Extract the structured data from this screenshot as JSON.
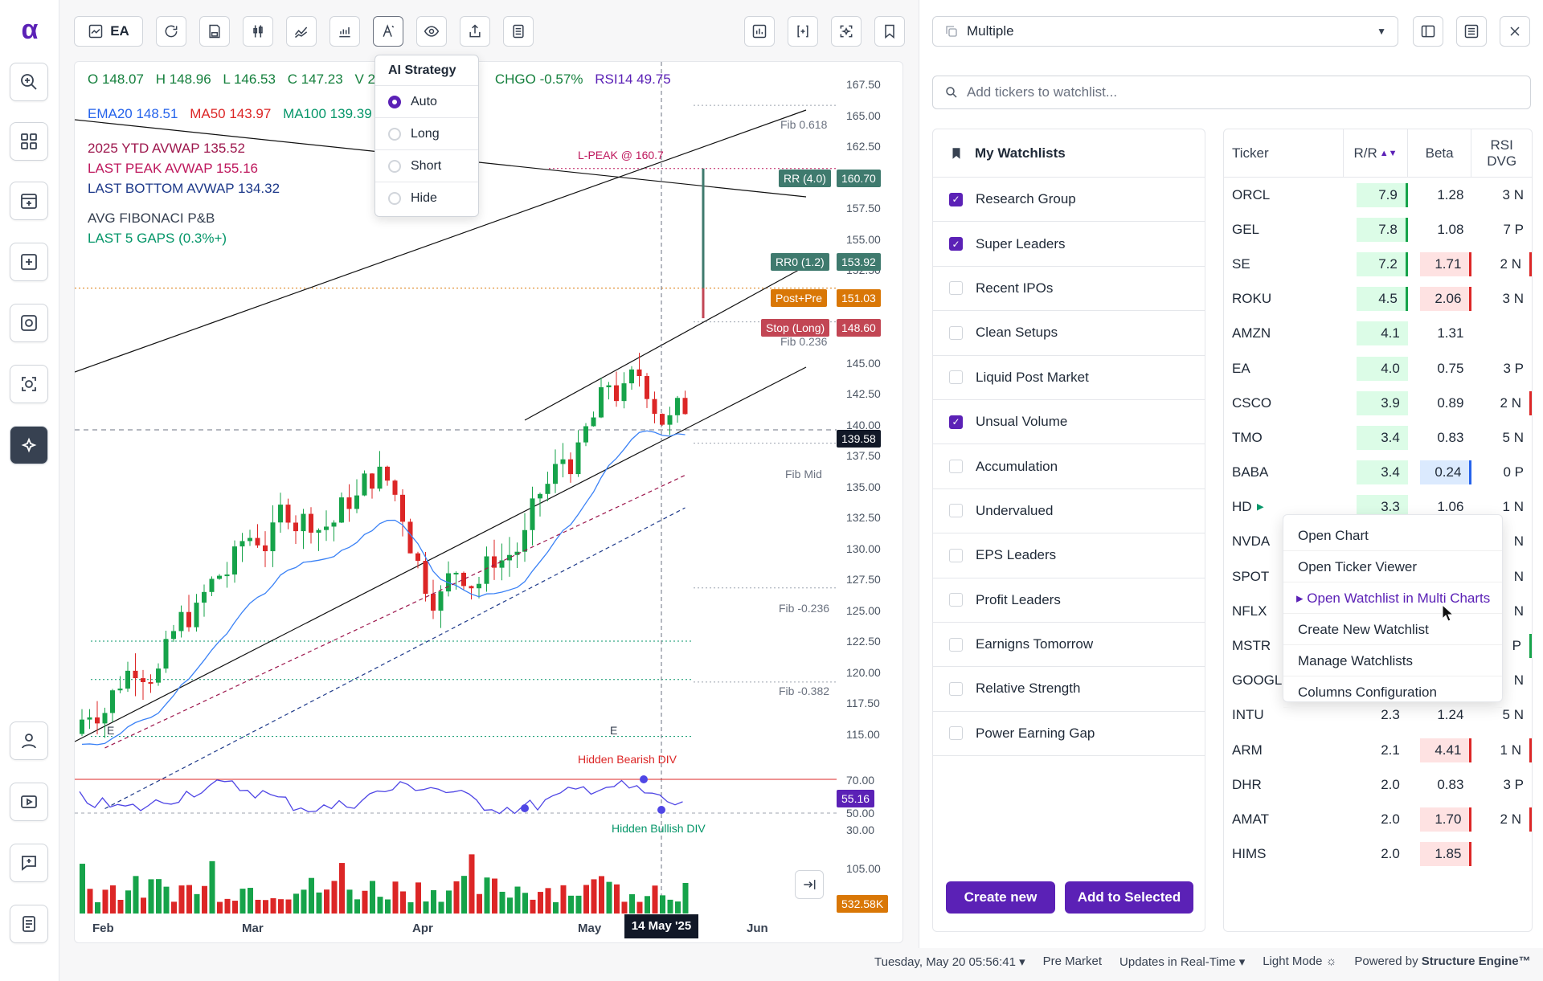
{
  "app": {
    "logo": "α"
  },
  "toolbar": {
    "ticker": "EA"
  },
  "chart": {
    "ohlc": {
      "o": "O 148.07",
      "h": "H 148.96",
      "l": "L 146.53",
      "c": "C 147.23",
      "v": "V 2.7",
      "chg": "CHGO -0.57%",
      "rsi": "RSI14 49.75"
    },
    "ma": {
      "ema20": "EMA20 148.51",
      "ma50": "MA50 143.97",
      "ma100": "MA100 139.39"
    },
    "legend": [
      {
        "text": "2025 YTD AVWAP 135.52",
        "color": "#9d174d"
      },
      {
        "text": "LAST PEAK AVWAP 155.16",
        "color": "#be185d"
      },
      {
        "text": "LAST BOTTOM AVWAP 134.32",
        "color": "#1e3a8a"
      },
      {
        "text": "AVG FIBONACI P&B",
        "color": "#374151"
      },
      {
        "text": "LAST 5 GAPS (0.3%+)",
        "color": "#059669"
      }
    ],
    "price_ticks": [
      "167.50",
      "165.00",
      "162.50",
      "160.00",
      "157.50",
      "155.00",
      "152.50",
      "150.00",
      "147.50",
      "145.00",
      "142.50",
      "140.00",
      "137.50",
      "135.00",
      "132.50",
      "130.00",
      "127.50",
      "125.00",
      "122.50",
      "120.00",
      "117.50",
      "115.00"
    ],
    "rsi_ticks": [
      "70.00",
      "50.00",
      "30.00"
    ],
    "volume_tick": "105.00",
    "tags": {
      "rr": "RR (4.0)",
      "rr_price": "160.70",
      "rr0": "RR0 (1.2)",
      "rr0_price": "153.92",
      "postpre": "Post+Pre",
      "postpre_price": "151.03",
      "stop": "Stop (Long)",
      "stop_price": "148.60",
      "last": "139.58",
      "rsi": "55.16",
      "vol": "532.58K"
    },
    "fib": {
      "f618": "Fib 0.618",
      "f236": "Fib 0.236",
      "mid": "Fib Mid",
      "fm236": "Fib -0.236",
      "fm382": "Fib -0.382"
    },
    "annotations": {
      "lpeak": "L-PEAK @ 160.7",
      "hidden_bear": "Hidden Bearish DIV",
      "hidden_bull": "Hidden Bullish DIV",
      "e1": "E",
      "e2": "E"
    },
    "months": [
      "Feb",
      "Mar",
      "Apr",
      "May",
      "Jun"
    ],
    "crosshair_date": "14 May '25"
  },
  "ai_menu": {
    "title": "AI Strategy",
    "options": [
      "Auto",
      "Long",
      "Short",
      "Hide"
    ],
    "selected": "Auto"
  },
  "right": {
    "selector": "Multiple",
    "search_placeholder": "Add tickers to watchlist...",
    "watchlists_title": "My Watchlists",
    "watchlists": [
      {
        "name": "Research Group",
        "checked": true
      },
      {
        "name": "Super Leaders",
        "checked": true
      },
      {
        "name": "Recent IPOs",
        "checked": false
      },
      {
        "name": "Clean Setups",
        "checked": false
      },
      {
        "name": "Liquid Post Market",
        "checked": false
      },
      {
        "name": "Unsual Volume",
        "checked": true
      },
      {
        "name": "Accumulation",
        "checked": false
      },
      {
        "name": "Undervalued",
        "checked": false
      },
      {
        "name": "EPS Leaders",
        "checked": false
      },
      {
        "name": "Profit Leaders",
        "checked": false
      },
      {
        "name": "Earnigns Tomorrow",
        "checked": false
      },
      {
        "name": "Relative Strength",
        "checked": false
      },
      {
        "name": "Power Earning Gap",
        "checked": false
      }
    ],
    "create_new": "Create new",
    "add_selected": "Add to Selected",
    "columns": {
      "ticker": "Ticker",
      "rr": "R/R",
      "beta": "Beta",
      "rsi1": "RSI",
      "rsi2": "DVG"
    },
    "rows": [
      {
        "t": "ORCL",
        "rr": "7.9",
        "beta": "1.28",
        "rsi": "3 N",
        "rrbg": "#dcfce7",
        "rrbar": "#16a34a",
        "bbg": "",
        "bbar": "",
        "sbar": ""
      },
      {
        "t": "GEL",
        "rr": "7.8",
        "beta": "1.08",
        "rsi": "7 P",
        "rrbg": "#dcfce7",
        "rrbar": "#16a34a",
        "bbg": "",
        "bbar": "",
        "sbar": ""
      },
      {
        "t": "SE",
        "rr": "7.2",
        "beta": "1.71",
        "rsi": "2 N",
        "rrbg": "#dcfce7",
        "rrbar": "#16a34a",
        "bbg": "#fee2e2",
        "bbar": "#dc2626",
        "sbar": "#dc2626"
      },
      {
        "t": "ROKU",
        "rr": "4.5",
        "beta": "2.06",
        "rsi": "3 N",
        "rrbg": "#dcfce7",
        "rrbar": "#16a34a",
        "bbg": "#fee2e2",
        "bbar": "#dc2626",
        "sbar": ""
      },
      {
        "t": "AMZN",
        "rr": "4.1",
        "beta": "1.31",
        "rsi": "",
        "rrbg": "#dcfce7",
        "rrbar": "",
        "bbg": "",
        "bbar": "",
        "sbar": ""
      },
      {
        "t": "EA",
        "rr": "4.0",
        "beta": "0.75",
        "rsi": "3 P",
        "rrbg": "#dcfce7",
        "rrbar": "",
        "bbg": "",
        "bbar": "",
        "sbar": ""
      },
      {
        "t": "CSCO",
        "rr": "3.9",
        "beta": "0.89",
        "rsi": "2 N",
        "rrbg": "#dcfce7",
        "rrbar": "",
        "bbg": "",
        "bbar": "",
        "sbar": "#dc2626"
      },
      {
        "t": "TMO",
        "rr": "3.4",
        "beta": "0.83",
        "rsi": "5 N",
        "rrbg": "#dcfce7",
        "rrbar": "",
        "bbg": "",
        "bbar": "",
        "sbar": ""
      },
      {
        "t": "BABA",
        "rr": "3.4",
        "beta": "0.24",
        "rsi": "0 P",
        "rrbg": "#dcfce7",
        "rrbar": "",
        "bbg": "#dbeafe",
        "bbar": "#2563eb",
        "sbar": ""
      },
      {
        "t": "HD",
        "rr": "3.3",
        "beta": "1.06",
        "rsi": "1 N",
        "rrbg": "#dcfce7",
        "rrbar": "",
        "bbg": "",
        "bbar": "",
        "sbar": "",
        "flag": true
      },
      {
        "t": "NVDA",
        "rr": "",
        "beta": "",
        "rsi": "N",
        "rrbg": "",
        "rrbar": "",
        "bbg": "",
        "bbar": "",
        "sbar": ""
      },
      {
        "t": "SPOT",
        "rr": "",
        "beta": "",
        "rsi": "N",
        "rrbg": "",
        "rrbar": "",
        "bbg": "",
        "bbar": "",
        "sbar": ""
      },
      {
        "t": "NFLX",
        "rr": "",
        "beta": "",
        "rsi": "N",
        "rrbg": "",
        "rrbar": "",
        "bbg": "",
        "bbar": "",
        "sbar": ""
      },
      {
        "t": "MSTR",
        "rr": "",
        "beta": "",
        "rsi": "P",
        "rrbg": "",
        "rrbar": "",
        "bbg": "",
        "bbar": "",
        "sbar": "#16a34a"
      },
      {
        "t": "GOOGL",
        "rr": "",
        "beta": "",
        "rsi": "N",
        "rrbg": "",
        "rrbar": "",
        "bbg": "",
        "bbar": "",
        "sbar": ""
      },
      {
        "t": "INTU",
        "rr": "2.3",
        "beta": "1.24",
        "rsi": "5 N",
        "rrbg": "",
        "rrbar": "",
        "bbg": "",
        "bbar": "",
        "sbar": ""
      },
      {
        "t": "ARM",
        "rr": "2.1",
        "beta": "4.41",
        "rsi": "1 N",
        "rrbg": "",
        "rrbar": "",
        "bbg": "#fee2e2",
        "bbar": "#dc2626",
        "sbar": "#dc2626"
      },
      {
        "t": "DHR",
        "rr": "2.0",
        "beta": "0.83",
        "rsi": "3 P",
        "rrbg": "",
        "rrbar": "",
        "bbg": "",
        "bbar": "",
        "sbar": ""
      },
      {
        "t": "AMAT",
        "rr": "2.0",
        "beta": "1.70",
        "rsi": "2 N",
        "rrbg": "",
        "rrbar": "",
        "bbg": "#fee2e2",
        "bbar": "#dc2626",
        "sbar": "#dc2626"
      },
      {
        "t": "HIMS",
        "rr": "2.0",
        "beta": "1.85",
        "rsi": "",
        "rrbg": "",
        "rrbar": "",
        "bbg": "#fee2e2",
        "bbar": "#dc2626",
        "sbar": ""
      }
    ]
  },
  "context_menu": [
    "Open Chart",
    "Open Ticker Viewer",
    "Open Watchlist in Multi Charts",
    "Create New Watchlist",
    "Manage Watchlists",
    "Columns Configuration"
  ],
  "context_active": "Open Watchlist in Multi Charts",
  "status": {
    "datetime": "Tuesday, May 20 05:56:41",
    "session": "Pre Market",
    "updates": "Updates in Real-Time",
    "mode": "Light Mode",
    "powered_prefix": "Powered by",
    "powered_brand": "Structure Engine™"
  }
}
